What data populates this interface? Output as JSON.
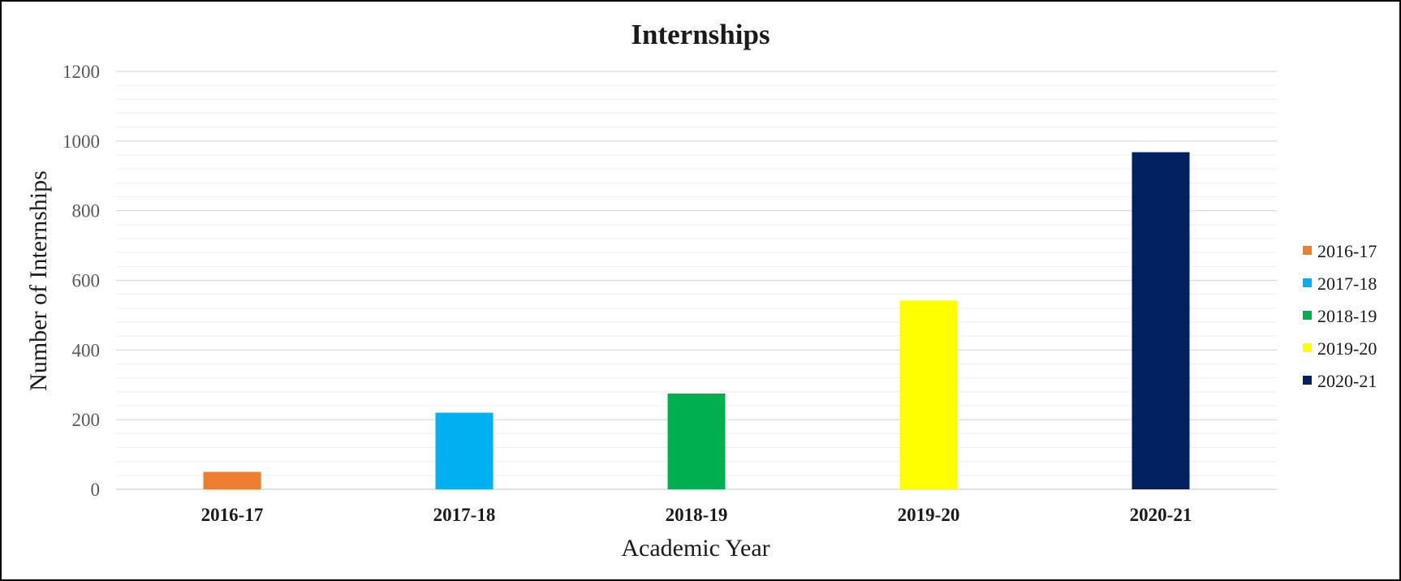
{
  "chart_data": {
    "type": "bar",
    "title": "Internships",
    "xlabel": "Academic Year",
    "ylabel": "Number of Internships",
    "categories": [
      "2016-17",
      "2017-18",
      "2018-19",
      "2019-20",
      "2020-21"
    ],
    "values": [
      50,
      220,
      275,
      542,
      968
    ],
    "colors": [
      "#ED7D31",
      "#00B0F0",
      "#00B050",
      "#FFFF00",
      "#002060"
    ],
    "ylim": [
      0,
      1200
    ],
    "yticks": [
      0,
      200,
      400,
      600,
      800,
      1000,
      1200
    ],
    "grid": true,
    "legend": {
      "position": "right",
      "entries": [
        "2016-17",
        "2017-18",
        "2018-19",
        "2019-20",
        "2020-21"
      ]
    }
  }
}
